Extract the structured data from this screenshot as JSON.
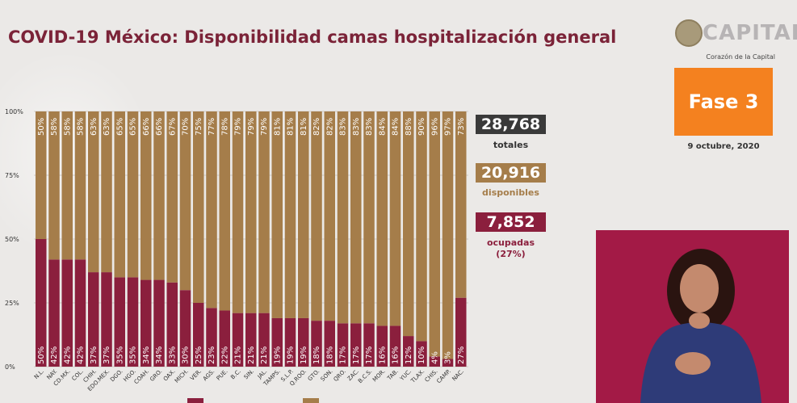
{
  "title": "COVID-19 México: Disponibilidad camas hospitalización general",
  "logo": {
    "text": "CAPITAL",
    "subtitle": "Corazón de la Capital"
  },
  "phase_label": "Fase 3",
  "date": "9 octubre, 2020",
  "stats": {
    "total_value": "28,768",
    "total_label": "totales",
    "available_value": "20,916",
    "available_label": "disponibles",
    "occupied_value": "7,852",
    "occupied_label": "ocupadas",
    "occupied_pct": "(27%)"
  },
  "colors": {
    "occupied": "#8b1f3d",
    "available": "#a57d4a",
    "total": "#3a3a3a",
    "phase": "#f4811f",
    "title": "#7b2338"
  },
  "chart_data": {
    "type": "bar",
    "stacked": true,
    "ylim": [
      0,
      100
    ],
    "yticks": [
      "0%",
      "25%",
      "50%",
      "75%",
      "100%"
    ],
    "grid": true,
    "categories": [
      "N.L.",
      "NAY.",
      "CD.MX.",
      "COL.",
      "CHIH.",
      "EDO.MEX.",
      "DGO.",
      "HGO.",
      "COAH.",
      "GRO.",
      "OAX.",
      "MICH.",
      "VER.",
      "AGS.",
      "PUE.",
      "B.C.",
      "SIN.",
      "JAL.",
      "TAMPS.",
      "S.L.P.",
      "Q.ROO.",
      "GTO.",
      "SON.",
      "QRO.",
      "ZAC.",
      "B.C.S.",
      "MOR.",
      "TAB.",
      "YUC.",
      "TLAX.",
      "CHIS.",
      "CAMP.",
      "NAC."
    ],
    "series": [
      {
        "key": "occupied",
        "values": [
          50,
          42,
          42,
          42,
          37,
          37,
          35,
          35,
          34,
          34,
          33,
          30,
          25,
          23,
          22,
          21,
          21,
          21,
          19,
          19,
          19,
          18,
          18,
          17,
          17,
          17,
          16,
          16,
          12,
          10,
          4,
          3,
          27
        ],
        "labels": [
          "50%",
          "42%",
          "42%",
          "42%",
          "37%",
          "37%",
          "35%",
          "35%",
          "34%",
          "34%",
          "33%",
          "30%",
          "25%",
          "23%",
          "22%",
          "21%",
          "21%",
          "21%",
          "19%",
          "19%",
          "19%",
          "18%",
          "18%",
          "17%",
          "17%",
          "17%",
          "16%",
          "16%",
          "12%",
          "10%",
          "4%",
          "3%",
          "27%"
        ]
      },
      {
        "key": "available",
        "values": [
          50,
          58,
          58,
          58,
          63,
          63,
          65,
          65,
          66,
          66,
          67,
          70,
          75,
          77,
          78,
          79,
          79,
          79,
          81,
          81,
          81,
          82,
          82,
          83,
          83,
          83,
          84,
          84,
          88,
          90,
          96,
          97,
          73
        ],
        "labels": [
          "50%",
          "58%",
          "58%",
          "58%",
          "63%",
          "63%",
          "65%",
          "65%",
          "66%",
          "66%",
          "67%",
          "70%",
          "75%",
          "77%",
          "78%",
          "79%",
          "79%",
          "79%",
          "81%",
          "81%",
          "81%",
          "82%",
          "82%",
          "83%",
          "83%",
          "83%",
          "84%",
          "84%",
          "88%",
          "90%",
          "96%",
          "97%",
          "73%"
        ]
      }
    ]
  }
}
